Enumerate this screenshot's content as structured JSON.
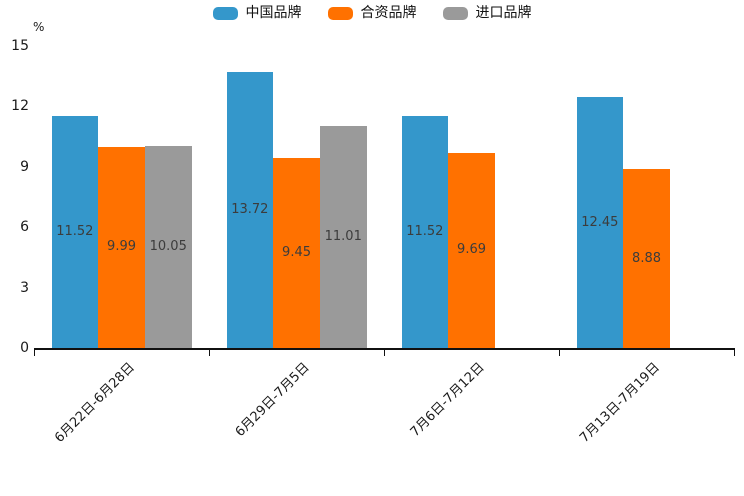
{
  "chart_data": {
    "type": "bar",
    "title": "",
    "ylabel": "%",
    "xlabel": "",
    "ylim": [
      0,
      15
    ],
    "yticks": [
      0,
      3,
      6,
      9,
      12,
      15
    ],
    "grid": false,
    "legend_position": "top",
    "categories": [
      "6月22日-6月28日",
      "6月29日-7月5日",
      "7月6日-7月12日",
      "7月13日-7月19日"
    ],
    "series": [
      {
        "name": "中国品牌",
        "color": "#3497cb",
        "values": [
          11.52,
          13.72,
          11.52,
          12.45
        ]
      },
      {
        "name": "合资品牌",
        "color": "#ff7100",
        "values": [
          9.99,
          9.45,
          9.69,
          8.88
        ]
      },
      {
        "name": "进口品牌",
        "color": "#9a9a9a",
        "values": [
          10.05,
          11.01,
          null,
          null
        ]
      }
    ],
    "bar_labels": [
      [
        "11.52",
        "13.72",
        "11.52",
        "12.45"
      ],
      [
        "9.99",
        "9.45",
        "9.69",
        "8.88"
      ],
      [
        "10.05",
        "11.01",
        null,
        null
      ]
    ],
    "colors": {
      "axis": "#111111",
      "tick_text": "#1a1a1a",
      "bar_label_text": "#3c3c3c",
      "background": "#ffffff"
    }
  }
}
